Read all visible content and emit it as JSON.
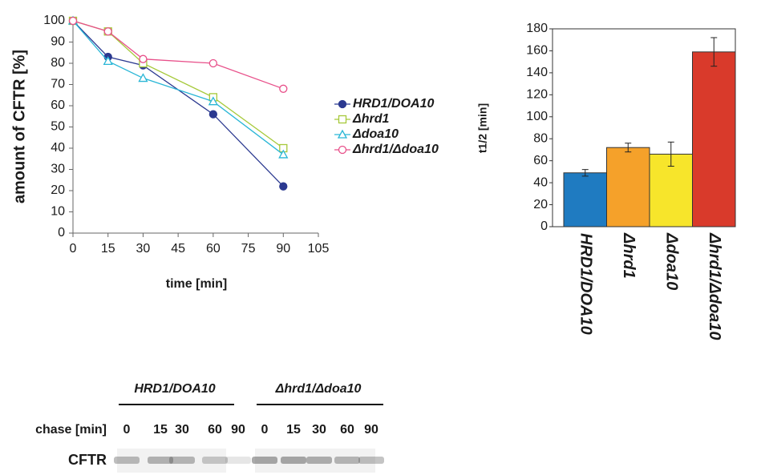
{
  "chart_data": [
    {
      "type": "line",
      "y_label": "amount of CFTR [%]",
      "x_label": "time [min]",
      "x": [
        0,
        15,
        30,
        60,
        90
      ],
      "xlim": [
        0,
        105
      ],
      "xticks": [
        0,
        15,
        30,
        45,
        60,
        75,
        90,
        105
      ],
      "ylim": [
        0,
        100
      ],
      "yticks": [
        0,
        10,
        20,
        30,
        40,
        50,
        60,
        70,
        80,
        90,
        100
      ],
      "grid": false,
      "legend": "right",
      "series": [
        {
          "name": "HRD1/DOA10",
          "color": "#2b3990",
          "marker": "circle-filled",
          "values": [
            100,
            83,
            79,
            56,
            22
          ]
        },
        {
          "name": "Δhrd1",
          "color": "#a6c93a",
          "marker": "square",
          "values": [
            100,
            95,
            80,
            64,
            40
          ]
        },
        {
          "name": "Δdoa10",
          "color": "#29b6d6",
          "marker": "triangle",
          "values": [
            100,
            81,
            73,
            62,
            37
          ]
        },
        {
          "name": "Δhrd1/Δdoa10",
          "color": "#e8508a",
          "marker": "circle",
          "values": [
            100,
            95,
            82,
            80,
            68
          ]
        }
      ]
    },
    {
      "type": "bar",
      "y_label": "t1/2 [min]",
      "categories": [
        "HRD1/DOA10",
        "Δhrd1",
        "Δdoa10",
        "Δhrd1/Δdoa10"
      ],
      "values": [
        49,
        72,
        66,
        159
      ],
      "errors": [
        3,
        4,
        11,
        13
      ],
      "colors": [
        "#1f7bc1",
        "#f5a12a",
        "#f7e52b",
        "#d93a2b"
      ],
      "ylim": [
        0,
        180
      ],
      "yticks": [
        0,
        20,
        40,
        60,
        80,
        100,
        120,
        140,
        160,
        180
      ],
      "grid": false
    }
  ],
  "blot": {
    "chase_label": "chase [min]",
    "protein": "CFTR",
    "groups": [
      {
        "label": "HRD1/DOA10",
        "lanes": [
          0,
          15,
          30,
          60,
          90
        ]
      },
      {
        "label": "Δhrd1/Δdoa10",
        "lanes": [
          0,
          15,
          30,
          60,
          90
        ]
      }
    ]
  }
}
